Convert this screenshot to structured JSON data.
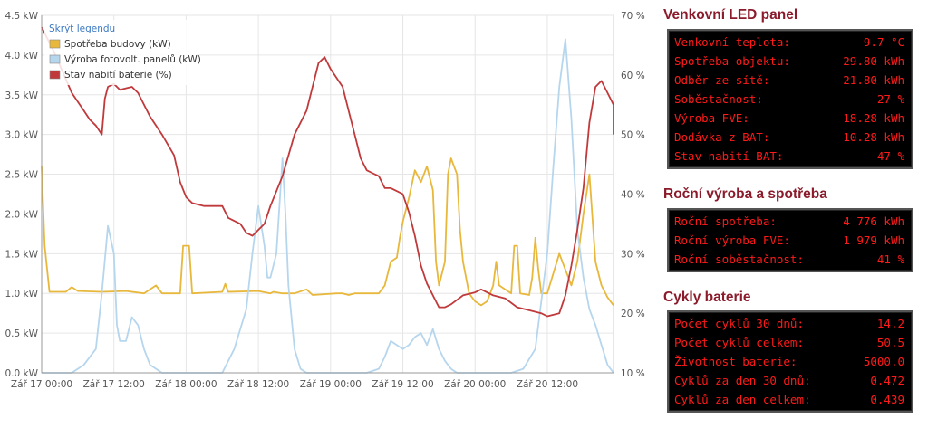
{
  "chart_data": {
    "type": "line",
    "x_ticks": [
      "Zář 17 00:00",
      "Zář 17 12:00",
      "Zář 18 00:00",
      "Zář 18 12:00",
      "Zář 19 00:00",
      "Zář 19 12:00",
      "Zář 20 00:00",
      "Zář 20 12:00"
    ],
    "y_left_ticks": [
      "0.0 kW",
      "0.5 kW",
      "1.0 kW",
      "1.5 kW",
      "2.0 kW",
      "2.5 kW",
      "3.0 kW",
      "3.5 kW",
      "4.0 kW",
      "4.5 kW"
    ],
    "y_right_ticks": [
      "10 %",
      "20 %",
      "30 %",
      "40 %",
      "50 %",
      "60 %",
      "70 %"
    ],
    "ylim_left": [
      0,
      4.5
    ],
    "ylim_right": [
      10,
      70
    ],
    "xlim_hours": [
      0,
      95
    ],
    "legend_toggle": "Skrýt legendu",
    "legend_position": "top-left",
    "grid": true,
    "series": [
      {
        "name": "Spotřeba budovy (kW)",
        "color": "#e8b83c",
        "axis": "left",
        "points": [
          [
            0,
            2.6
          ],
          [
            0.5,
            1.6
          ],
          [
            1.3,
            1.02
          ],
          [
            4,
            1.02
          ],
          [
            5,
            1.08
          ],
          [
            6,
            1.03
          ],
          [
            10,
            1.02
          ],
          [
            14,
            1.03
          ],
          [
            17,
            1.0
          ],
          [
            19,
            1.1
          ],
          [
            20,
            1.0
          ],
          [
            23,
            1.0
          ],
          [
            23.5,
            1.6
          ],
          [
            24.5,
            1.6
          ],
          [
            25,
            1.0
          ],
          [
            30,
            1.02
          ],
          [
            30.5,
            1.12
          ],
          [
            31,
            1.02
          ],
          [
            36,
            1.03
          ],
          [
            38,
            1.0
          ],
          [
            38.5,
            1.02
          ],
          [
            40,
            1.0
          ],
          [
            42,
            1.0
          ],
          [
            44,
            1.05
          ],
          [
            45,
            0.98
          ],
          [
            49,
            1.0
          ],
          [
            50,
            1.0
          ],
          [
            51,
            0.98
          ],
          [
            52,
            1.0
          ],
          [
            53,
            1.0
          ],
          [
            54,
            1.0
          ],
          [
            56,
            1.0
          ],
          [
            57,
            1.1
          ],
          [
            58,
            1.4
          ],
          [
            59,
            1.45
          ],
          [
            59.5,
            1.7
          ],
          [
            60,
            1.9
          ],
          [
            61,
            2.2
          ],
          [
            62,
            2.55
          ],
          [
            63,
            2.4
          ],
          [
            64,
            2.6
          ],
          [
            65,
            2.3
          ],
          [
            65.5,
            1.4
          ],
          [
            66,
            1.1
          ],
          [
            67,
            1.4
          ],
          [
            67.5,
            2.5
          ],
          [
            68,
            2.7
          ],
          [
            69,
            2.5
          ],
          [
            69.5,
            1.8
          ],
          [
            70,
            1.4
          ],
          [
            71,
            1.0
          ],
          [
            72,
            0.9
          ],
          [
            73,
            0.85
          ],
          [
            74,
            0.9
          ],
          [
            75,
            1.1
          ],
          [
            75.5,
            1.4
          ],
          [
            76,
            1.1
          ],
          [
            78,
            1.0
          ],
          [
            78.5,
            1.6
          ],
          [
            79,
            1.6
          ],
          [
            79.5,
            1.0
          ],
          [
            81,
            0.98
          ],
          [
            81.5,
            1.2
          ],
          [
            82,
            1.7
          ],
          [
            82.5,
            1.3
          ],
          [
            83,
            1.0
          ],
          [
            84,
            1.0
          ],
          [
            86,
            1.5
          ],
          [
            88,
            1.1
          ],
          [
            89,
            1.4
          ],
          [
            90,
            2.0
          ],
          [
            91,
            2.5
          ],
          [
            92,
            1.4
          ],
          [
            93,
            1.1
          ],
          [
            94,
            0.95
          ],
          [
            95,
            0.85
          ]
        ]
      },
      {
        "name": "Výroba fotovolt. panelů (kW)",
        "color": "#b6d6ee",
        "axis": "left",
        "points": [
          [
            0,
            0
          ],
          [
            5,
            0
          ],
          [
            7,
            0.1
          ],
          [
            9,
            0.3
          ],
          [
            10,
            1.0
          ],
          [
            11,
            1.85
          ],
          [
            12,
            1.5
          ],
          [
            12.5,
            0.6
          ],
          [
            13,
            0.4
          ],
          [
            14,
            0.4
          ],
          [
            15,
            0.7
          ],
          [
            16,
            0.6
          ],
          [
            17,
            0.3
          ],
          [
            18,
            0.1
          ],
          [
            20,
            0
          ],
          [
            30,
            0
          ],
          [
            32,
            0.3
          ],
          [
            34,
            0.8
          ],
          [
            35,
            1.5
          ],
          [
            36,
            2.1
          ],
          [
            37,
            1.6
          ],
          [
            37.5,
            1.2
          ],
          [
            38,
            1.2
          ],
          [
            39,
            1.5
          ],
          [
            40,
            2.7
          ],
          [
            40.5,
            2.0
          ],
          [
            41,
            1.1
          ],
          [
            42,
            0.3
          ],
          [
            43,
            0.05
          ],
          [
            44,
            0
          ],
          [
            54,
            0
          ],
          [
            56,
            0.05
          ],
          [
            57,
            0.2
          ],
          [
            58,
            0.4
          ],
          [
            59,
            0.35
          ],
          [
            60,
            0.3
          ],
          [
            61,
            0.35
          ],
          [
            62,
            0.45
          ],
          [
            63,
            0.5
          ],
          [
            64,
            0.35
          ],
          [
            65,
            0.55
          ],
          [
            66,
            0.3
          ],
          [
            67,
            0.15
          ],
          [
            68,
            0.05
          ],
          [
            69,
            0
          ],
          [
            78,
            0
          ],
          [
            80,
            0.05
          ],
          [
            82,
            0.3
          ],
          [
            84,
            1.5
          ],
          [
            85,
            2.6
          ],
          [
            86,
            3.6
          ],
          [
            87,
            4.2
          ],
          [
            88,
            3.2
          ],
          [
            89,
            1.8
          ],
          [
            90,
            1.2
          ],
          [
            91,
            0.8
          ],
          [
            92,
            0.6
          ],
          [
            93,
            0.35
          ],
          [
            94,
            0.1
          ],
          [
            95,
            0
          ]
        ]
      },
      {
        "name": "Stav nabití baterie (%)",
        "color": "#c0393b",
        "axis": "right",
        "points": [
          [
            0,
            68
          ],
          [
            2,
            64
          ],
          [
            5,
            57
          ],
          [
            7,
            54
          ],
          [
            8,
            52.5
          ],
          [
            9,
            51.5
          ],
          [
            10,
            50
          ],
          [
            10.5,
            56
          ],
          [
            11,
            58
          ],
          [
            12,
            58.5
          ],
          [
            13,
            57.5
          ],
          [
            15,
            58
          ],
          [
            16,
            57
          ],
          [
            18,
            53
          ],
          [
            20,
            50
          ],
          [
            22,
            46.5
          ],
          [
            23,
            42
          ],
          [
            24,
            39.5
          ],
          [
            25,
            38.5
          ],
          [
            27,
            38
          ],
          [
            30,
            38
          ],
          [
            31,
            36
          ],
          [
            33,
            35
          ],
          [
            34,
            33.5
          ],
          [
            35,
            33
          ],
          [
            37,
            35
          ],
          [
            38,
            38
          ],
          [
            40,
            43
          ],
          [
            42,
            50
          ],
          [
            44,
            54
          ],
          [
            45,
            58
          ],
          [
            46,
            62
          ],
          [
            47,
            63
          ],
          [
            48,
            61
          ],
          [
            50,
            58
          ],
          [
            51,
            54
          ],
          [
            52,
            50
          ],
          [
            53,
            46
          ],
          [
            54,
            44
          ],
          [
            55,
            43.5
          ],
          [
            56,
            43
          ],
          [
            57,
            41
          ],
          [
            58,
            41
          ],
          [
            59,
            40.5
          ],
          [
            60,
            40
          ],
          [
            61,
            37
          ],
          [
            62,
            33
          ],
          [
            63,
            28
          ],
          [
            64,
            25
          ],
          [
            65,
            23
          ],
          [
            66,
            21
          ],
          [
            67,
            21
          ],
          [
            68,
            21.5
          ],
          [
            70,
            23
          ],
          [
            72,
            23.5
          ],
          [
            73,
            24
          ],
          [
            74,
            23.5
          ],
          [
            75,
            23
          ],
          [
            77,
            22.5
          ],
          [
            79,
            21
          ],
          [
            81,
            20.5
          ],
          [
            83,
            20
          ],
          [
            84,
            19.5
          ],
          [
            86,
            20
          ],
          [
            87,
            23
          ],
          [
            88,
            28
          ],
          [
            89,
            34
          ],
          [
            90,
            41
          ],
          [
            91,
            52
          ],
          [
            92,
            58
          ],
          [
            93,
            59
          ],
          [
            94,
            57
          ],
          [
            96,
            55
          ],
          [
            98,
            55
          ],
          [
            100,
            53
          ],
          [
            102,
            50
          ]
        ]
      }
    ]
  },
  "panels": [
    {
      "title": "Venkovní LED panel",
      "rows": [
        {
          "label": "Venkovní teplota:",
          "value": "9.7 °C"
        },
        {
          "label": "Spotřeba objektu:",
          "value": "29.80 kWh"
        },
        {
          "label": "Odběr ze sítě:",
          "value": "21.80 kWh"
        },
        {
          "label": "Soběstačnost:",
          "value": "27 %"
        },
        {
          "label": "Výroba FVE:",
          "value": "18.28 kWh"
        },
        {
          "label": "Dodávka z BAT:",
          "value": "-10.28 kWh"
        },
        {
          "label": "Stav nabití BAT:",
          "value": "47 %"
        }
      ]
    },
    {
      "title": "Roční výroba a spotřeba",
      "rows": [
        {
          "label": "Roční spotřeba:",
          "value": "4 776 kWh"
        },
        {
          "label": "Roční výroba FVE:",
          "value": "1 979 kWh"
        },
        {
          "label": "Roční soběstačnost:",
          "value": "41 %"
        }
      ]
    },
    {
      "title": "Cykly baterie",
      "rows": [
        {
          "label": "Počet cyklů 30 dnů:",
          "value": "14.2"
        },
        {
          "label": "Počet cyklů celkem:",
          "value": "50.5"
        },
        {
          "label": "Životnost baterie:",
          "value": "5000.0"
        },
        {
          "label": "Cyklů za den 30 dnů:",
          "value": "0.472"
        },
        {
          "label": "Cyklů za den celkem:",
          "value": "0.439"
        }
      ]
    }
  ]
}
